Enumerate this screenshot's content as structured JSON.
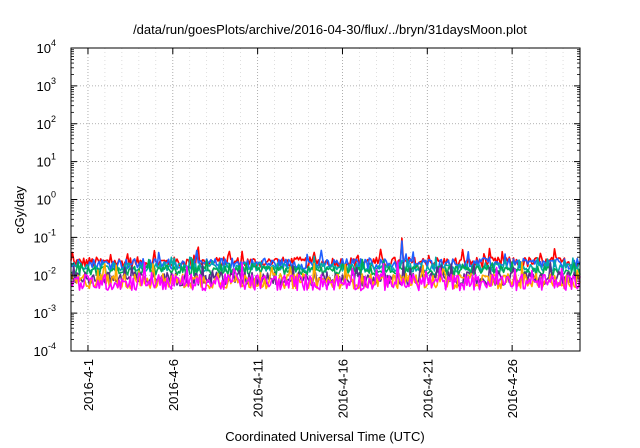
{
  "chart_data": {
    "type": "line",
    "title": "/data/run/goesPlots/archive/2016-04-30/flux/../bryn/31daysMoon.plot",
    "xlabel": "Coordinated Universal Time (UTC)",
    "ylabel": "cGy/day",
    "yscale": "log",
    "ylim": [
      0.0001,
      10000
    ],
    "y_ticks": [
      {
        "base": "10",
        "exp": "-4",
        "value": 0.0001
      },
      {
        "base": "10",
        "exp": "-3",
        "value": 0.001
      },
      {
        "base": "10",
        "exp": "-2",
        "value": 0.01
      },
      {
        "base": "10",
        "exp": "-1",
        "value": 0.1
      },
      {
        "base": "10",
        "exp": "0",
        "value": 1
      },
      {
        "base": "10",
        "exp": "1",
        "value": 10
      },
      {
        "base": "10",
        "exp": "2",
        "value": 100
      },
      {
        "base": "10",
        "exp": "3",
        "value": 1000
      },
      {
        "base": "10",
        "exp": "4",
        "value": 10000
      }
    ],
    "xlim": [
      "2016-03-31",
      "2016-04-30"
    ],
    "x_ticks": [
      {
        "label": "2016-4-1",
        "date": "2016-04-01"
      },
      {
        "label": "2016-4-6",
        "date": "2016-04-06"
      },
      {
        "label": "2016-4-11",
        "date": "2016-04-11"
      },
      {
        "label": "2016-4-16",
        "date": "2016-04-16"
      },
      {
        "label": "2016-4-21",
        "date": "2016-04-21"
      },
      {
        "label": "2016-4-26",
        "date": "2016-04-26"
      }
    ],
    "grid": true,
    "legend": "none",
    "series": [
      {
        "color": "#ff0000",
        "median": 0.022,
        "spread": 0.14,
        "spikes": [
          [
            "2016-04-19",
            0.095
          ],
          [
            "2016-04-07",
            0.055
          ],
          [
            "2016-04-28",
            0.05
          ]
        ]
      },
      {
        "color": "#1f5fff",
        "median": 0.02,
        "spread": 0.14,
        "spikes": [
          [
            "2016-04-19",
            0.08
          ],
          [
            "2016-04-30",
            0.05
          ]
        ]
      },
      {
        "color": "#00aaaa",
        "median": 0.016,
        "spread": 0.12,
        "spikes": []
      },
      {
        "color": "#00aa55",
        "median": 0.013,
        "spread": 0.12,
        "spikes": []
      },
      {
        "color": "#5a2d8a",
        "median": 0.008,
        "spread": 0.18,
        "spikes": []
      },
      {
        "color": "#ffaa00",
        "median": 0.007,
        "spread": 0.2,
        "spikes": []
      },
      {
        "color": "#ff00ff",
        "median": 0.0065,
        "spread": 0.22,
        "spikes": []
      }
    ]
  }
}
